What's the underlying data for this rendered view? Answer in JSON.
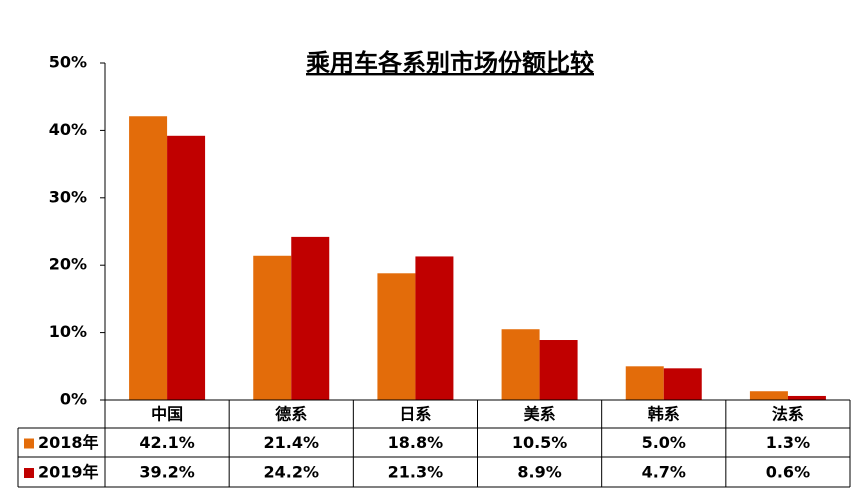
{
  "chart_data": {
    "type": "bar",
    "title": "乘用车各系别市场份额比较",
    "categories": [
      "中国",
      "德系",
      "日系",
      "美系",
      "韩系",
      "法系"
    ],
    "series": [
      {
        "name": "2018年",
        "color": "#e36c0a",
        "values": [
          42.1,
          21.4,
          18.8,
          10.5,
          5.0,
          1.3
        ],
        "value_labels": [
          "42.1%",
          "21.4%",
          "18.8%",
          "10.5%",
          "5.0%",
          "1.3%"
        ]
      },
      {
        "name": "2019年",
        "color": "#c00000",
        "values": [
          39.2,
          24.2,
          21.3,
          8.9,
          4.7,
          0.6
        ],
        "value_labels": [
          "39.2%",
          "24.2%",
          "21.3%",
          "8.9%",
          "4.7%",
          "0.6%"
        ]
      }
    ],
    "ylim": [
      0,
      50
    ],
    "yticks": [
      {
        "value": 0,
        "label": "0%"
      },
      {
        "value": 10,
        "label": "10%"
      },
      {
        "value": 20,
        "label": "20%"
      },
      {
        "value": 30,
        "label": "30%"
      },
      {
        "value": 40,
        "label": "40%"
      },
      {
        "value": 50,
        "label": "50%"
      }
    ],
    "grid": false
  }
}
